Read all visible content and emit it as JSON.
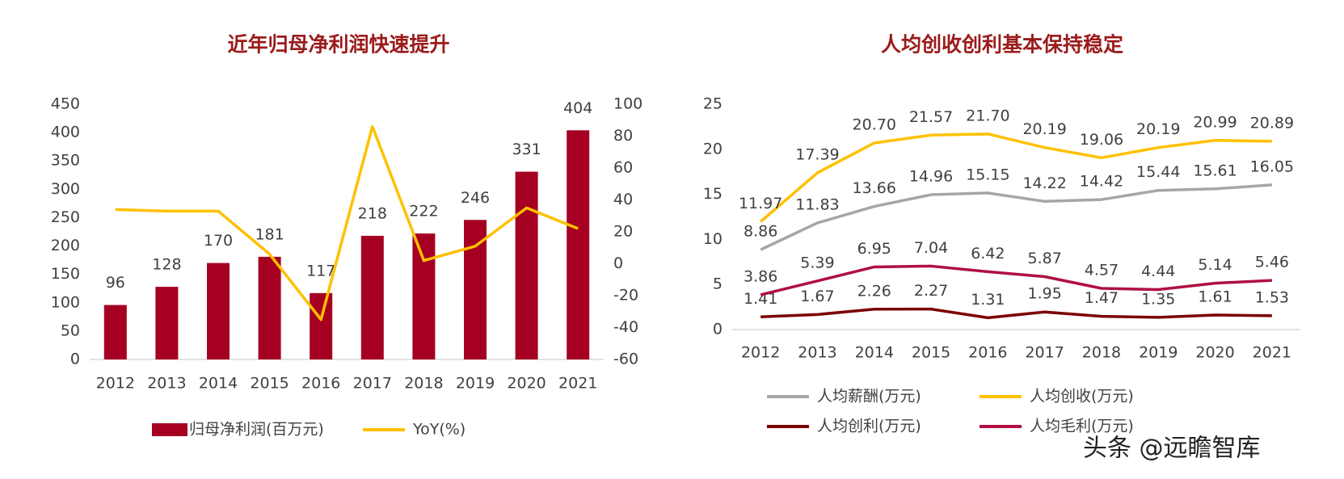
{
  "charts": [
    {
      "type": "bar",
      "title": "近年归母净利润快速提升",
      "categories": [
        "2012",
        "2013",
        "2014",
        "2015",
        "2016",
        "2017",
        "2018",
        "2019",
        "2020",
        "2021"
      ],
      "series": [
        {
          "name": "归母净利润(百万元)",
          "color": "#a50021",
          "values": [
            96,
            128,
            170,
            181,
            117,
            218,
            222,
            246,
            331,
            404
          ]
        },
        {
          "name": "YoY(%)",
          "color": "#ffc000",
          "axis": "y2",
          "values": [
            34,
            33,
            33,
            6,
            -35,
            86,
            2,
            11,
            35,
            22
          ]
        }
      ],
      "ylim": [
        0,
        450
      ],
      "yticks": [
        0,
        50,
        100,
        150,
        200,
        250,
        300,
        350,
        400,
        450
      ],
      "y2lim": [
        -60,
        100
      ],
      "y2ticks": [
        -60,
        -40,
        -20,
        0,
        20,
        40,
        60,
        80,
        100
      ],
      "legend": "bottom"
    },
    {
      "type": "line",
      "title": "人均创收创利基本保持稳定",
      "categories": [
        "2012",
        "2013",
        "2014",
        "2015",
        "2016",
        "2017",
        "2018",
        "2019",
        "2020",
        "2021"
      ],
      "series": [
        {
          "name": "人均薪酬(万元)",
          "color": "#a6a6a6",
          "values": [
            8.86,
            11.83,
            13.66,
            14.96,
            15.15,
            14.22,
            14.42,
            15.44,
            15.61,
            16.05
          ],
          "value_labels": [
            "8.86",
            "11.83",
            "13.66",
            "14.96",
            "15.15",
            "14.22",
            "14.42",
            "15.44",
            "15.61",
            "16.05"
          ]
        },
        {
          "name": "人均创收(万元)",
          "color": "#ffc000",
          "values": [
            11.97,
            17.39,
            20.7,
            21.57,
            21.7,
            20.19,
            19.06,
            20.19,
            20.99,
            20.89
          ],
          "value_labels": [
            "11.97",
            "17.39",
            "20.70",
            "21.57",
            "21.70",
            "20.19",
            "19.06",
            "20.19",
            "20.99",
            "20.89"
          ]
        },
        {
          "name": "人均创利(万元)",
          "color": "#7b0000",
          "values": [
            1.41,
            1.67,
            2.26,
            2.27,
            1.31,
            1.95,
            1.47,
            1.35,
            1.61,
            1.53
          ],
          "value_labels": [
            "1.41",
            "1.67",
            "2.26",
            "2.27",
            "1.31",
            "1.95",
            "1.47",
            "1.35",
            "1.61",
            "1.53"
          ]
        },
        {
          "name": "人均毛利(万元)",
          "color": "#b01040",
          "values": [
            3.86,
            5.39,
            6.95,
            7.04,
            6.42,
            5.87,
            4.57,
            4.44,
            5.14,
            5.46
          ],
          "value_labels": [
            "3.86",
            "5.39",
            "6.95",
            "7.04",
            "6.42",
            "5.87",
            "4.57",
            "4.44",
            "5.14",
            "5.46"
          ]
        }
      ],
      "ylim": [
        0,
        25
      ],
      "yticks": [
        0,
        5,
        10,
        15,
        20,
        25
      ],
      "legend": "bottom"
    }
  ],
  "watermark": "头条 @远瞻智库"
}
